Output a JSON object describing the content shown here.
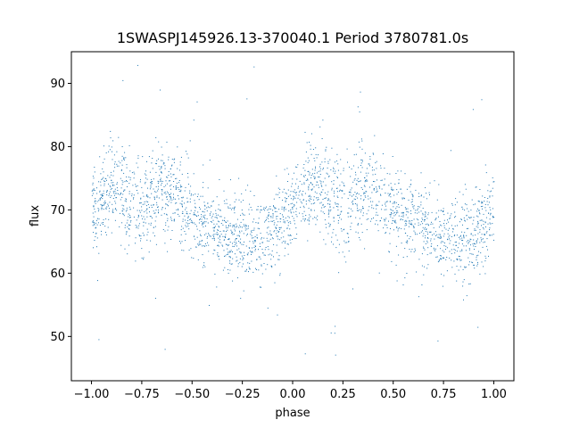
{
  "chart_data": {
    "type": "scatter",
    "title": "1SWASPJ145926.13-370040.1 Period 3780781.0s",
    "xlabel": "phase",
    "ylabel": "flux",
    "xlim": [
      -1.1,
      1.1
    ],
    "ylim": [
      43,
      95
    ],
    "x_ticks": [
      -1.0,
      -0.75,
      -0.5,
      -0.25,
      0.0,
      0.25,
      0.5,
      0.75,
      1.0
    ],
    "x_tick_labels": [
      "−1.00",
      "−0.75",
      "−0.50",
      "−0.25",
      "0.00",
      "0.25",
      "0.50",
      "0.75",
      "1.00"
    ],
    "y_ticks": [
      50,
      60,
      70,
      80,
      90
    ],
    "y_tick_labels": [
      "50",
      "60",
      "70",
      "80",
      "90"
    ],
    "grid": false,
    "marker_color": "#1f77b4",
    "series": [
      {
        "profile": {
          "phase": [
            0.0,
            0.05,
            0.1,
            0.15,
            0.2,
            0.25,
            0.3,
            0.35,
            0.4,
            0.45,
            0.5,
            0.55,
            0.6,
            0.65,
            0.7,
            0.75,
            0.8,
            0.85,
            0.9,
            0.95,
            1.0
          ],
          "flux_center": [
            70.0,
            72.0,
            73.5,
            73.0,
            71.0,
            70.0,
            72.0,
            74.0,
            73.0,
            71.0,
            69.5,
            68.0,
            67.5,
            67.0,
            66.0,
            65.5,
            65.0,
            65.5,
            66.5,
            68.0,
            70.0
          ],
          "flux_spread": [
            4.5,
            4.5,
            5.0,
            5.5,
            5.5,
            5.0,
            5.0,
            5.0,
            5.0,
            4.5,
            4.5,
            4.5,
            4.5,
            4.5,
            4.5,
            4.5,
            4.5,
            4.5,
            4.5,
            4.5,
            4.5
          ]
        },
        "phase_range": [
          -1.0,
          1.0
        ],
        "outlier_range": [
          45,
          94
        ]
      }
    ]
  }
}
